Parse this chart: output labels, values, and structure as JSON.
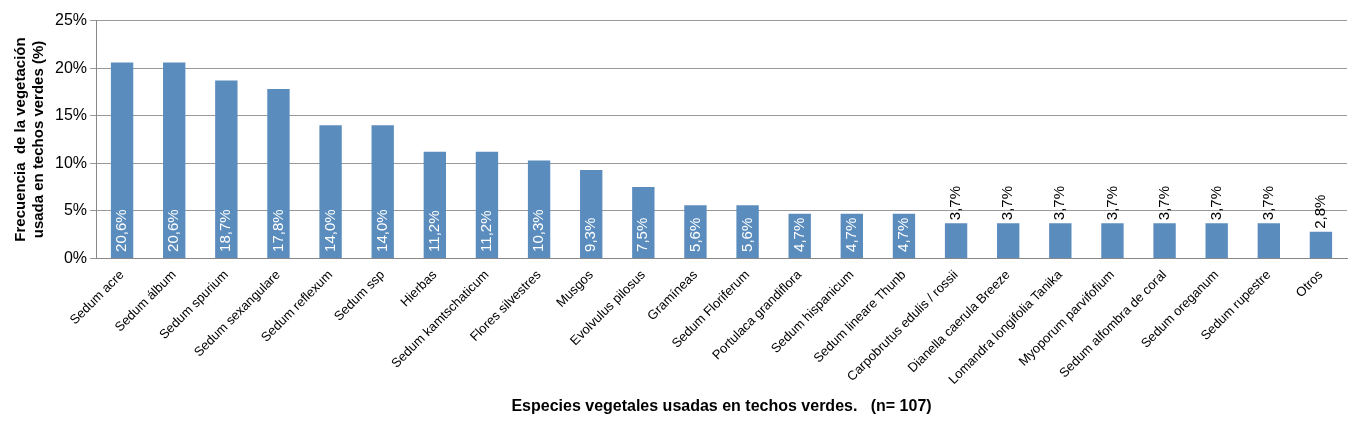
{
  "chart_data": {
    "type": "bar",
    "xlabel": "Especies vegetales usadas en techos verdes.   (n= 107)",
    "ylabel": "Frecuencia  de la vegetación usada en techos verdes (%)",
    "categories": [
      "Sedum acre",
      "Sedum álbum",
      "Sedum spurium",
      "Sedum sexangulare",
      "Sedum reflexum",
      "Sedum ssp",
      "Hierbas",
      "Sedum kamtschaticum",
      "Flores silvestres",
      "Musgos",
      "Evolvulus pilosus",
      "Gramíneas",
      "Sedum Floriferum",
      "Portulaca grandiflora",
      "Sedum hispanicum",
      "Sedum lineare Thunb",
      "Carpobrutus edulis / rossii",
      "Dianella caerula Breeze",
      "Lomandra longifolia Tanika",
      "Myoporum parvifofium",
      "Sedum alfombra de coral",
      "Sedum oreganum",
      "Sedum rupestre",
      "Otros"
    ],
    "values": [
      20.6,
      20.6,
      18.7,
      17.8,
      14.0,
      14.0,
      11.2,
      11.2,
      10.3,
      9.3,
      7.5,
      5.6,
      5.6,
      4.7,
      4.7,
      4.7,
      3.7,
      3.7,
      3.7,
      3.7,
      3.7,
      3.7,
      3.7,
      2.8
    ],
    "value_labels": [
      "20,6%",
      "20,6%",
      "18,7%",
      "17,8%",
      "14,0%",
      "14,0%",
      "11,2%",
      "11,2%",
      "10,3%",
      "9,3%",
      "7,5%",
      "5,6%",
      "5,6%",
      "4,7%",
      "4,7%",
      "4,7%",
      "3,7%",
      "3,7%",
      "3,7%",
      "3,7%",
      "3,7%",
      "3,7%",
      "3,7%",
      "2,8%"
    ],
    "color": "#5a8cbe",
    "ylim": [
      0,
      25
    ],
    "yticks": [
      {
        "value": 0,
        "label": "0%"
      },
      {
        "value": 5,
        "label": "5%"
      },
      {
        "value": 10,
        "label": "10%"
      },
      {
        "value": 15,
        "label": "15%"
      },
      {
        "value": 20,
        "label": "20%"
      },
      {
        "value": 25,
        "label": "25%"
      }
    ],
    "grid": "y",
    "legend": false
  }
}
